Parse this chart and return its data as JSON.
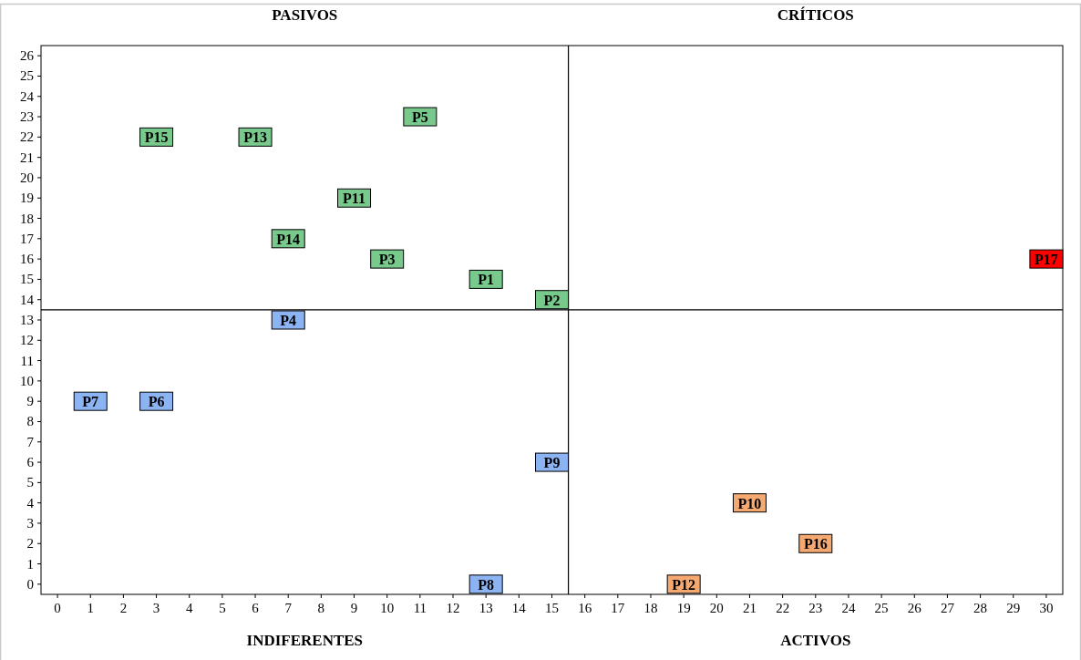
{
  "chart_data": {
    "type": "scatter",
    "xlim": [
      -0.5,
      30.5
    ],
    "ylim": [
      -0.5,
      26.5
    ],
    "xticks": [
      0,
      1,
      2,
      3,
      4,
      5,
      6,
      7,
      8,
      9,
      10,
      11,
      12,
      13,
      14,
      15,
      16,
      17,
      18,
      19,
      20,
      21,
      22,
      23,
      24,
      25,
      26,
      27,
      28,
      29,
      30
    ],
    "yticks": [
      0,
      1,
      2,
      3,
      4,
      5,
      6,
      7,
      8,
      9,
      10,
      11,
      12,
      13,
      14,
      15,
      16,
      17,
      18,
      19,
      20,
      21,
      22,
      23,
      24,
      25,
      26
    ],
    "grid": false,
    "marker": "square",
    "series": [
      {
        "color": "#77c98c",
        "x": [
          13,
          15,
          10,
          11,
          9,
          6,
          7,
          3
        ],
        "values": [
          15,
          14,
          16,
          23,
          19,
          22,
          17,
          22
        ]
      },
      {
        "color": "#8db4f2",
        "x": [
          7,
          3,
          1,
          13,
          15
        ],
        "values": [
          13,
          9,
          9,
          0,
          6
        ]
      },
      {
        "color": "#f6a871",
        "x": [
          21,
          19,
          23
        ],
        "values": [
          4,
          0,
          2
        ]
      },
      {
        "color": "#ff0000",
        "x": [
          30
        ],
        "values": [
          16
        ]
      }
    ],
    "ref_lines": [
      {
        "axis": "x",
        "value": 15.5,
        "color": "#000000"
      },
      {
        "axis": "y",
        "value": 13.5,
        "color": "#000000"
      }
    ],
    "annotations": [
      "PASIVOS",
      "CRÍTICOS",
      "INDIFERENTES",
      "ACTIVOS",
      {
        "text": "P1",
        "x": 13,
        "y": 15
      },
      {
        "text": "P2",
        "x": 15,
        "y": 14
      },
      {
        "text": "P3",
        "x": 10,
        "y": 16
      },
      {
        "text": "P5",
        "x": 11,
        "y": 23
      },
      {
        "text": "P11",
        "x": 9,
        "y": 19
      },
      {
        "text": "P13",
        "x": 6,
        "y": 22
      },
      {
        "text": "P14",
        "x": 7,
        "y": 17
      },
      {
        "text": "P15",
        "x": 3,
        "y": 22
      },
      {
        "text": "P4",
        "x": 7,
        "y": 13
      },
      {
        "text": "P6",
        "x": 3,
        "y": 9
      },
      {
        "text": "P7",
        "x": 1,
        "y": 9
      },
      {
        "text": "P8",
        "x": 13,
        "y": 0
      },
      {
        "text": "P9",
        "x": 15,
        "y": 6
      },
      {
        "text": "P10",
        "x": 21,
        "y": 4
      },
      {
        "text": "P12",
        "x": 19,
        "y": 0
      },
      {
        "text": "P16",
        "x": 23,
        "y": 2
      },
      {
        "text": "P17",
        "x": 30,
        "y": 16
      }
    ]
  }
}
